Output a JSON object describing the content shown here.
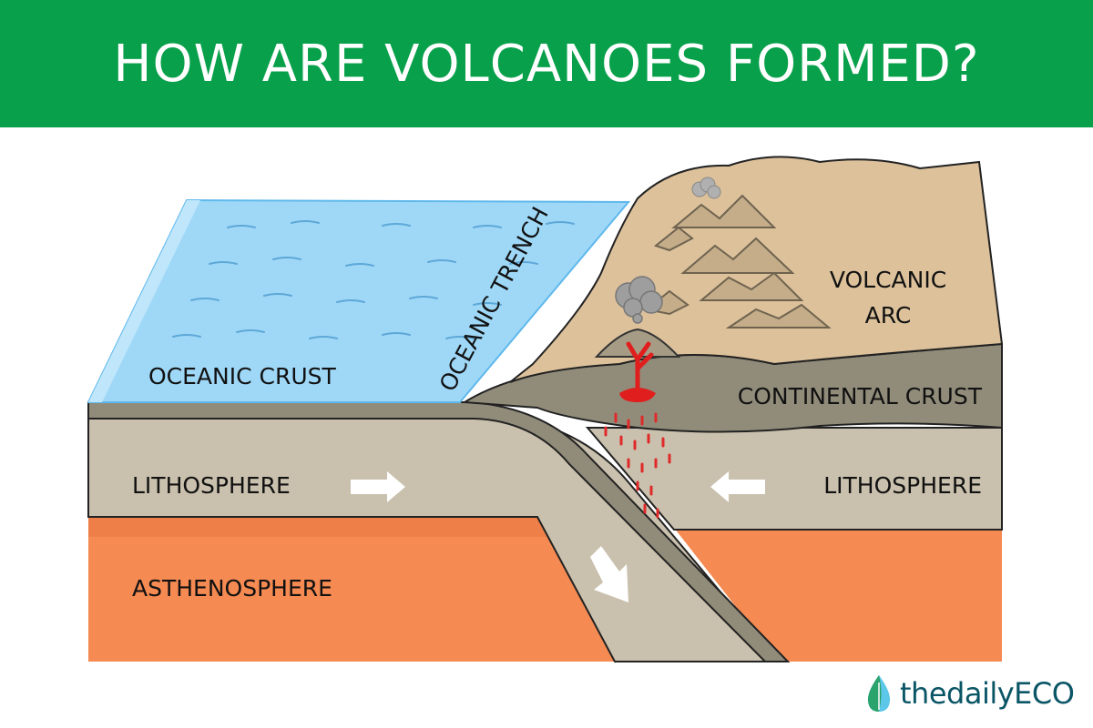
{
  "banner": {
    "title": "HOW ARE VOLCANOES FORMED?"
  },
  "colors": {
    "banner": "#08a04a",
    "ocean": "#9fd8f7",
    "land": "#dcc19b",
    "continental_crust": "#918c7a",
    "lithosphere": "#c9c0ad",
    "asthenosphere": "#f58a52",
    "magma": "#e01e1e"
  },
  "labels": {
    "oceanic_crust": "OCEANIC CRUST",
    "oceanic_trench": "OCEANIC TRENCH",
    "volcanic_arc_line1": "VOLCANIC",
    "volcanic_arc_line2": "ARC",
    "continental_crust": "CONTINENTAL CRUST",
    "lithosphere_left": "LITHOSPHERE",
    "lithosphere_right": "LITHOSPHERE",
    "asthenosphere": "ASTHENOSPHERE"
  },
  "logo": {
    "text": "thedailyECO",
    "icon": "water-drop-leaf-icon"
  }
}
